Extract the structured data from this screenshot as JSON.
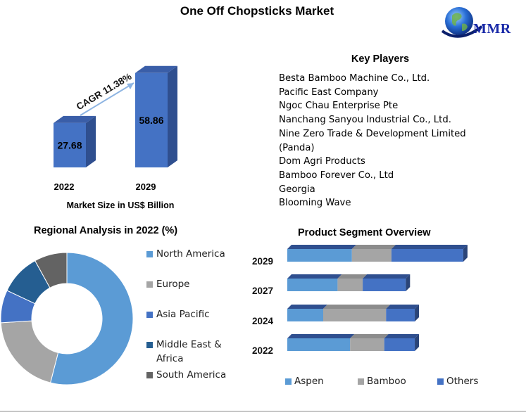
{
  "title": "One Off Chopsticks Market",
  "logo": {
    "text": "MMR",
    "icon": "globe-icon"
  },
  "colors": {
    "bar_front": "#4472c4",
    "bar_side": "#2f4f8f",
    "bar_top": "#3a5ea8",
    "aspen": "#5b9bd5",
    "bamboo": "#a5a5a5",
    "others": "#4472c4",
    "north_america": "#5b9bd5",
    "europe": "#a5a5a5",
    "asia_pacific": "#4472c4",
    "middle_east_africa": "#255e91",
    "south_america": "#636363"
  },
  "chart_data": [
    {
      "type": "bar",
      "categories": [
        "2022",
        "2029"
      ],
      "values": [
        27.68,
        58.86
      ],
      "data_labels": [
        "27.68",
        "58.86"
      ],
      "xlabel": "Market Size in US$ Billion",
      "annotation": "CAGR 11.38%"
    },
    {
      "type": "pie",
      "title": "Regional Analysis in 2022 (%)",
      "labels": [
        "North America",
        "Europe",
        "Asia Pacific",
        "Middle East & Africa",
        "South America"
      ],
      "values": [
        54,
        20,
        8,
        10,
        8
      ],
      "legend": "right"
    },
    {
      "type": "bar",
      "orientation": "horizontal",
      "stacked": true,
      "title": "Product Segment Overview",
      "categories": [
        "2029",
        "2027",
        "2024",
        "2022"
      ],
      "series": [
        {
          "name": "Aspen",
          "values": [
            36,
            28,
            20,
            35
          ]
        },
        {
          "name": "Bamboo",
          "values": [
            22,
            14,
            35,
            19
          ]
        },
        {
          "name": "Others",
          "values": [
            40,
            24,
            16,
            17
          ]
        }
      ],
      "legend": "bottom"
    }
  ],
  "key_players": {
    "title": "Key Players",
    "items": [
      "Besta Bamboo Machine Co., Ltd.",
      "Pacific East Company",
      "Ngoc Chau Enterprise Pte",
      "Nanchang Sanyou Industrial Co., Ltd.",
      "Nine Zero Trade & Development Limited",
      "(Panda)",
      "Dom Agri Products",
      "Bamboo Forever Co., Ltd",
      "Georgia",
      "Blooming Wave"
    ]
  }
}
